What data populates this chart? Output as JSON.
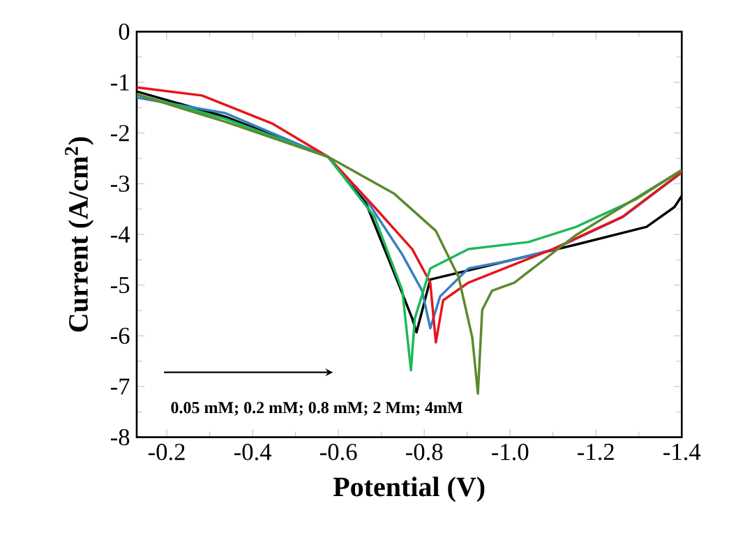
{
  "chart_data": {
    "type": "line",
    "xlabel": "Potential (V)",
    "ylabel": "Current (A/cm$^{2}$)",
    "xlim": [
      -0.13,
      -1.4
    ],
    "ylim": [
      -8,
      0
    ],
    "xticks": [
      -0.2,
      -0.4,
      -0.6,
      -0.8,
      {
        "value": -1,
        "label": "-1.0"
      },
      -1.2,
      -1.4
    ],
    "yticks": [
      0,
      -1,
      -2,
      -3,
      -4,
      -5,
      -6,
      -7,
      -8
    ],
    "grid": false,
    "marker": "none",
    "line_style": "solid",
    "annotations": [
      "0.05 mM; 0.2 mM; 0.8 mM; 2 Mm; 4mM"
    ],
    "series": [
      {
        "color": "#000000",
        "x": [
          -0.13,
          -0.337,
          -0.576,
          -0.664,
          -0.739,
          -0.772,
          -0.782,
          -0.814,
          -0.991,
          -1.154,
          -1.318,
          -1.383,
          -1.4
        ],
        "values": [
          -1.18,
          -1.68,
          -2.47,
          -3.38,
          -4.95,
          -5.66,
          -5.93,
          -4.89,
          -4.53,
          -4.2,
          -3.85,
          -3.46,
          -3.24
        ]
      },
      {
        "color": "#3a7fc1",
        "x": [
          -0.13,
          -0.337,
          -0.576,
          -0.664,
          -0.749,
          -0.795,
          -0.814,
          -0.837,
          -0.903,
          -0.991,
          -1.1,
          -1.262,
          -1.4
        ],
        "values": [
          -1.3,
          -1.61,
          -2.47,
          -3.3,
          -4.4,
          -5.11,
          -5.85,
          -5.22,
          -4.67,
          -4.53,
          -4.3,
          -3.66,
          -2.78
        ]
      },
      {
        "color": "#e8141b",
        "x": [
          -0.13,
          -0.282,
          -0.445,
          -0.576,
          -0.684,
          -0.772,
          -0.814,
          -0.827,
          -0.844,
          -0.903,
          -1.099,
          -1.262,
          -1.4
        ],
        "values": [
          -1.1,
          -1.26,
          -1.81,
          -2.47,
          -3.46,
          -4.29,
          -4.95,
          -6.13,
          -5.3,
          -4.95,
          -4.29,
          -3.65,
          -2.77
        ]
      },
      {
        "color": "#1cb85a",
        "x": [
          -0.13,
          -0.337,
          -0.576,
          -0.684,
          -0.749,
          -0.769,
          -0.778,
          -0.814,
          -0.903,
          -1.043,
          -1.154,
          -1.295,
          -1.4
        ],
        "values": [
          -1.24,
          -1.72,
          -2.47,
          -3.65,
          -5.11,
          -6.68,
          -5.66,
          -4.67,
          -4.29,
          -4.15,
          -3.85,
          -3.3,
          -2.73
        ]
      },
      {
        "color": "#5b8a2e",
        "x": [
          -0.13,
          -0.337,
          -0.576,
          -0.729,
          -0.827,
          -0.88,
          -0.912,
          -0.925,
          -0.935,
          -0.958,
          -1.01,
          -1.154,
          -1.4
        ],
        "values": [
          -1.24,
          -1.78,
          -2.47,
          -3.19,
          -3.93,
          -4.84,
          -6.04,
          -7.14,
          -5.49,
          -5.11,
          -4.95,
          -4.01,
          -2.73
        ]
      }
    ]
  }
}
